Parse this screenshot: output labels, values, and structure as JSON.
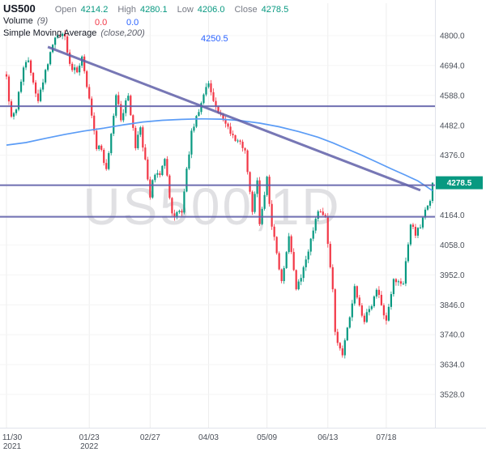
{
  "legend": {
    "symbol": "US500",
    "ohlc": [
      {
        "label": "Open",
        "value": "4214.2"
      },
      {
        "label": "High",
        "value": "4280.1"
      },
      {
        "label": "Low",
        "value": "4206.0"
      },
      {
        "label": "Close",
        "value": "4278.5"
      }
    ],
    "volume_label": "Volume",
    "volume_param": "(9)",
    "volume_values": [
      {
        "value": "0.0",
        "color": "#f23645"
      },
      {
        "value": "0.0",
        "color": "#2962ff"
      }
    ],
    "sma_label": "Simple Moving Average",
    "sma_param": "(close,200)",
    "sma_value": "4250.5"
  },
  "colors": {
    "up": "#089981",
    "down": "#f23645",
    "sma_line": "#5b9cf6",
    "drawing": "#5f5fa8",
    "watermark": "#e0e0e3",
    "axis_text": "#4a4f58",
    "grid_v": "#ededed",
    "grid_h": "#f4f4f4",
    "axis_line": "#e0e3eb",
    "badge_text": "#ffffff"
  },
  "chart_data": {
    "type": "candlestick",
    "symbol": "US500",
    "timeframe": "1D",
    "watermark": "US500,1D",
    "last_price": 4278.5,
    "last_candle": {
      "open": 4214.2,
      "high": 4280.1,
      "low": 4206.0,
      "close": 4278.5
    },
    "y_axis": {
      "min": 3528,
      "max": 4800,
      "tick_step": 106,
      "ticks": [
        4800,
        4694,
        4588,
        4482,
        4376,
        4270,
        4164,
        4058,
        3952,
        3846,
        3740,
        3634,
        3528
      ],
      "tick_hidden_by_badge": 4270
    },
    "x_axis": {
      "labels": [
        {
          "text": "11/30",
          "sub": "2021",
          "day": 0
        },
        {
          "text": "01/23",
          "sub": "2022",
          "day": 34
        },
        {
          "text": "02/27",
          "day": 59
        },
        {
          "text": "04/03",
          "day": 83
        },
        {
          "text": "05/09",
          "day": 107
        },
        {
          "text": "06/13",
          "day": 132
        },
        {
          "text": "07/18",
          "day": 156
        }
      ]
    },
    "num_days": 176,
    "close_anchors": [
      [
        0,
        4655
      ],
      [
        1,
        4567
      ],
      [
        2,
        4513
      ],
      [
        4,
        4538
      ],
      [
        7,
        4687
      ],
      [
        9,
        4712
      ],
      [
        11,
        4634
      ],
      [
        13,
        4568
      ],
      [
        15,
        4634
      ],
      [
        20,
        4793
      ],
      [
        24,
        4797
      ],
      [
        26,
        4700
      ],
      [
        29,
        4670
      ],
      [
        31,
        4726
      ],
      [
        34,
        4577
      ],
      [
        37,
        4398
      ],
      [
        38,
        4410
      ],
      [
        41,
        4327
      ],
      [
        45,
        4589
      ],
      [
        47,
        4500
      ],
      [
        50,
        4587
      ],
      [
        53,
        4401
      ],
      [
        55,
        4475
      ],
      [
        59,
        4226
      ],
      [
        60,
        4288
      ],
      [
        63,
        4306
      ],
      [
        65,
        4363
      ],
      [
        68,
        4170
      ],
      [
        72,
        4173
      ],
      [
        76,
        4463
      ],
      [
        83,
        4631
      ],
      [
        87,
        4525
      ],
      [
        90,
        4488
      ],
      [
        93,
        4447
      ],
      [
        98,
        4393
      ],
      [
        101,
        4175
      ],
      [
        103,
        4287
      ],
      [
        104,
        4132
      ],
      [
        107,
        4300
      ],
      [
        109,
        4123
      ],
      [
        113,
        3930
      ],
      [
        116,
        4089
      ],
      [
        119,
        3901
      ],
      [
        121,
        3941
      ],
      [
        128,
        4177
      ],
      [
        131,
        4160
      ],
      [
        134,
        3901
      ],
      [
        135,
        3750
      ],
      [
        138,
        3667
      ],
      [
        140,
        3765
      ],
      [
        143,
        3912
      ],
      [
        147,
        3785
      ],
      [
        152,
        3899
      ],
      [
        156,
        3790
      ],
      [
        159,
        3937
      ],
      [
        163,
        3921
      ],
      [
        166,
        4130
      ],
      [
        168,
        4091
      ],
      [
        174,
        4214
      ],
      [
        175,
        4278.5
      ]
    ],
    "sma_points": [
      [
        0,
        4412
      ],
      [
        8,
        4421
      ],
      [
        16,
        4436
      ],
      [
        24,
        4450
      ],
      [
        32,
        4462
      ],
      [
        40,
        4472
      ],
      [
        48,
        4484
      ],
      [
        56,
        4494
      ],
      [
        64,
        4500
      ],
      [
        72,
        4503
      ],
      [
        80,
        4505
      ],
      [
        88,
        4504
      ],
      [
        96,
        4499
      ],
      [
        104,
        4490
      ],
      [
        112,
        4477
      ],
      [
        120,
        4460
      ],
      [
        128,
        4440
      ],
      [
        134,
        4420
      ],
      [
        140,
        4398
      ],
      [
        146,
        4376
      ],
      [
        152,
        4352
      ],
      [
        158,
        4328
      ],
      [
        164,
        4305
      ],
      [
        169,
        4285
      ],
      [
        172,
        4268
      ],
      [
        175,
        4250.5
      ]
    ],
    "trendline": {
      "from": [
        17,
        4760
      ],
      "to": [
        170,
        4252
      ]
    },
    "horizontal_lines": [
      4550,
      4270,
      4158
    ],
    "noise_amp": 13
  }
}
